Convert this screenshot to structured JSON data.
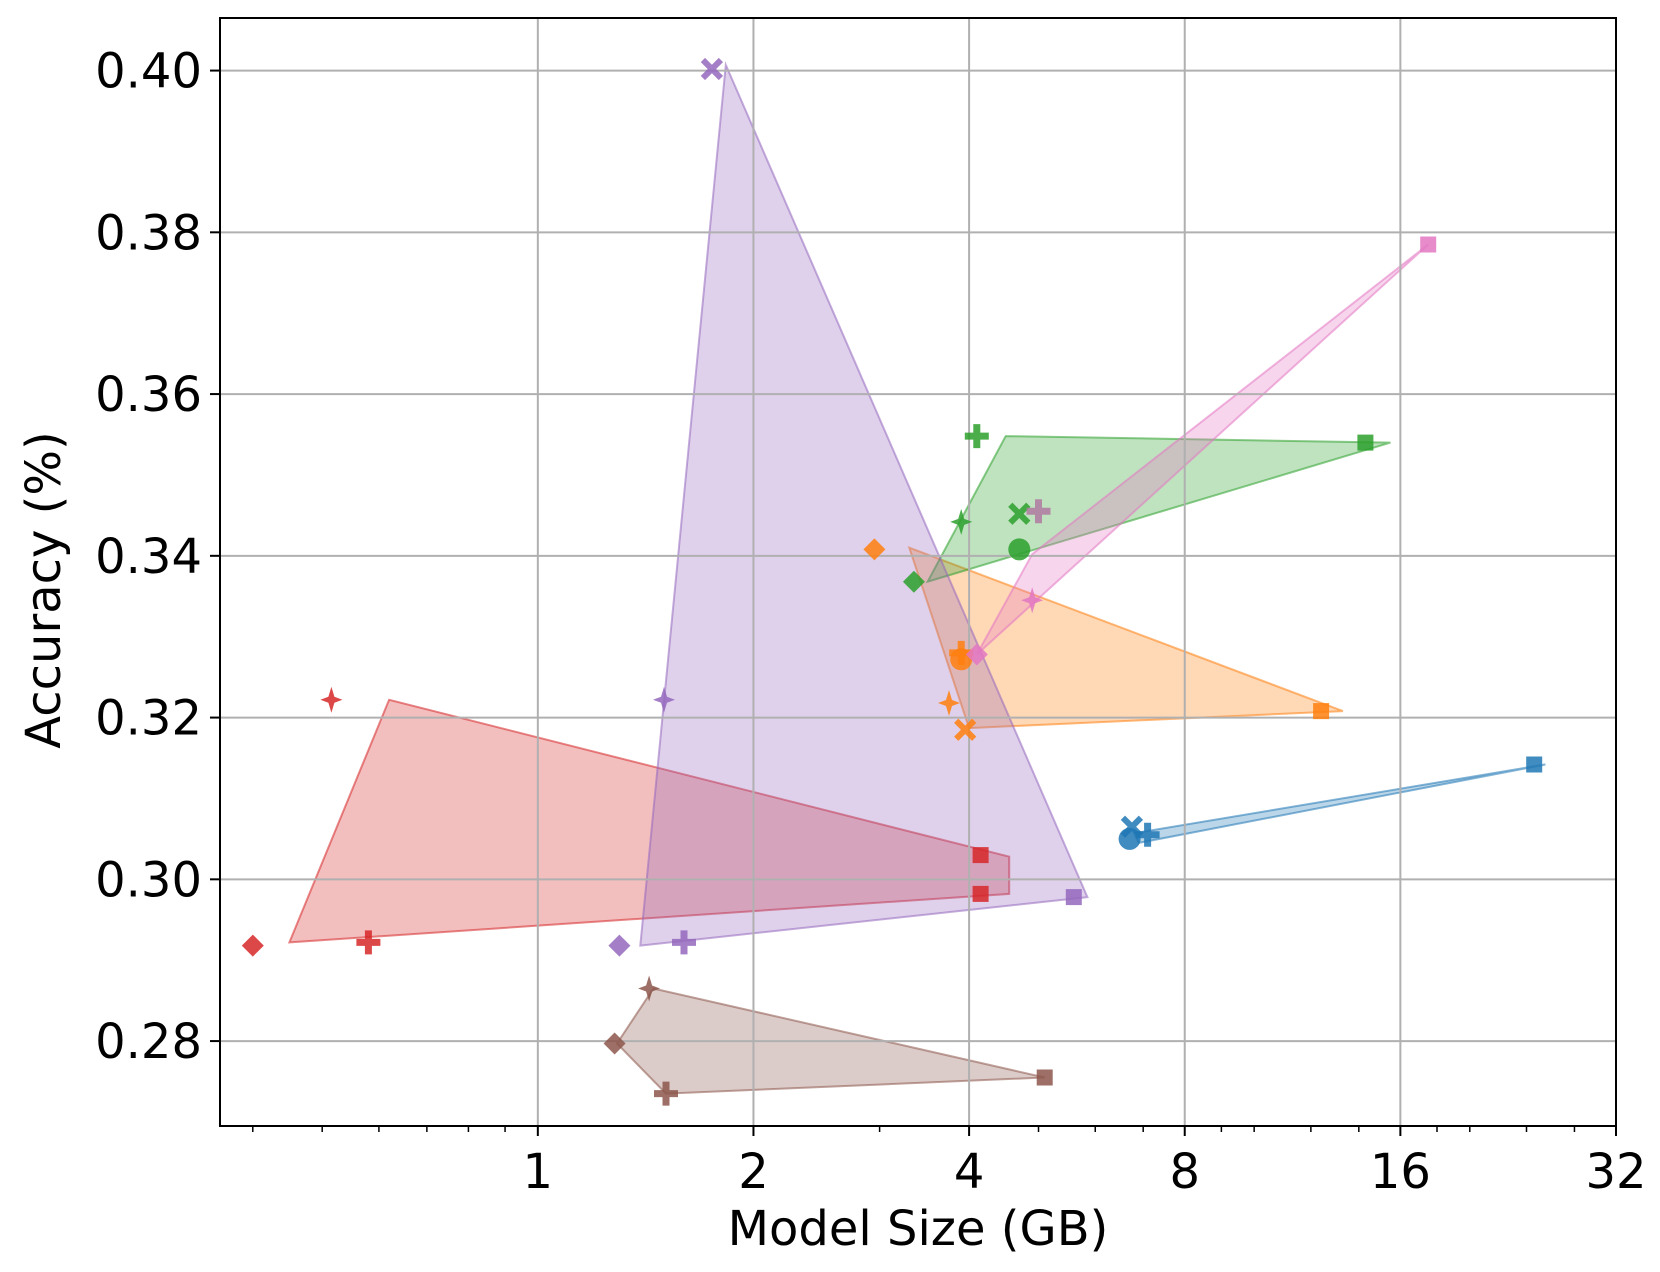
{
  "chart_data": {
    "type": "scatter",
    "title": "",
    "xlabel": "Model Size (GB)",
    "ylabel": "Accuracy (%)",
    "xscale": "log2",
    "xlim": [
      0.36,
      32
    ],
    "ylim": [
      0.2695,
      0.4065
    ],
    "xticks": [
      1,
      2,
      4,
      8,
      16,
      32
    ],
    "xtick_labels": [
      "1",
      "2",
      "4",
      "8",
      "16",
      "32"
    ],
    "yticks": [
      0.28,
      0.3,
      0.32,
      0.34,
      0.36,
      0.38,
      0.4
    ],
    "ytick_labels": [
      "0.28",
      "0.30",
      "0.32",
      "0.34",
      "0.36",
      "0.38",
      "0.40"
    ],
    "grid": true,
    "legend": null,
    "series": [
      {
        "name": "blue",
        "color": "#1f77b4",
        "points": [
          {
            "x": 6.7,
            "y": 0.305,
            "marker": "circle"
          },
          {
            "x": 6.75,
            "y": 0.3065,
            "marker": "x"
          },
          {
            "x": 7.1,
            "y": 0.3055,
            "marker": "plus"
          },
          {
            "x": 24.6,
            "y": 0.3142,
            "marker": "square"
          }
        ],
        "hull": [
          [
            6.8,
            0.3057
          ],
          [
            25.5,
            0.3142
          ],
          [
            6.9,
            0.3045
          ]
        ]
      },
      {
        "name": "orange",
        "color": "#ff7f0e",
        "points": [
          {
            "x": 2.95,
            "y": 0.3408,
            "marker": "diamond"
          },
          {
            "x": 3.75,
            "y": 0.3218,
            "marker": "star"
          },
          {
            "x": 3.9,
            "y": 0.3272,
            "marker": "circle"
          },
          {
            "x": 3.9,
            "y": 0.328,
            "marker": "plus"
          },
          {
            "x": 3.95,
            "y": 0.3185,
            "marker": "x"
          },
          {
            "x": 12.4,
            "y": 0.3208,
            "marker": "square"
          }
        ],
        "hull": [
          [
            3.3,
            0.341
          ],
          [
            13.3,
            0.3208
          ],
          [
            4.0,
            0.3187
          ]
        ]
      },
      {
        "name": "green",
        "color": "#2ca02c",
        "points": [
          {
            "x": 3.35,
            "y": 0.3368,
            "marker": "diamond"
          },
          {
            "x": 3.9,
            "y": 0.3442,
            "marker": "star"
          },
          {
            "x": 4.1,
            "y": 0.3548,
            "marker": "plus"
          },
          {
            "x": 4.7,
            "y": 0.3452,
            "marker": "x"
          },
          {
            "x": 4.7,
            "y": 0.3408,
            "marker": "circle"
          },
          {
            "x": 14.3,
            "y": 0.354,
            "marker": "square"
          }
        ],
        "hull": [
          [
            3.5,
            0.3368
          ],
          [
            4.5,
            0.3548
          ],
          [
            15.5,
            0.354
          ]
        ]
      },
      {
        "name": "red",
        "color": "#d62728",
        "points": [
          {
            "x": 0.4,
            "y": 0.2918,
            "marker": "diamond"
          },
          {
            "x": 0.515,
            "y": 0.3222,
            "marker": "star"
          },
          {
            "x": 0.58,
            "y": 0.2922,
            "marker": "plus"
          },
          {
            "x": 4.15,
            "y": 0.303,
            "marker": "square"
          },
          {
            "x": 4.15,
            "y": 0.2982,
            "marker": "square"
          }
        ],
        "hull": [
          [
            0.45,
            0.2922
          ],
          [
            0.62,
            0.3222
          ],
          [
            4.55,
            0.3028
          ],
          [
            4.55,
            0.2982
          ]
        ]
      },
      {
        "name": "purple",
        "color": "#9467bd",
        "points": [
          {
            "x": 1.75,
            "y": 0.4002,
            "marker": "x"
          },
          {
            "x": 1.5,
            "y": 0.3222,
            "marker": "star"
          },
          {
            "x": 1.3,
            "y": 0.2918,
            "marker": "diamond"
          },
          {
            "x": 1.6,
            "y": 0.2922,
            "marker": "plus"
          },
          {
            "x": 5.6,
            "y": 0.2978,
            "marker": "square"
          }
        ],
        "hull": [
          [
            1.83,
            0.4007
          ],
          [
            5.85,
            0.2978
          ],
          [
            1.39,
            0.2918
          ]
        ]
      },
      {
        "name": "brown",
        "color": "#8c564b",
        "points": [
          {
            "x": 1.43,
            "y": 0.2865,
            "marker": "star"
          },
          {
            "x": 1.28,
            "y": 0.2797,
            "marker": "diamond"
          },
          {
            "x": 1.51,
            "y": 0.2735,
            "marker": "plus"
          },
          {
            "x": 5.1,
            "y": 0.2755,
            "marker": "square"
          }
        ],
        "hull": [
          [
            1.45,
            0.2865
          ],
          [
            1.29,
            0.2797
          ],
          [
            1.51,
            0.2735
          ],
          [
            5.1,
            0.2755
          ]
        ]
      },
      {
        "name": "pink",
        "color": "#e377c2",
        "points": [
          {
            "x": 4.1,
            "y": 0.3278,
            "marker": "diamond"
          },
          {
            "x": 4.9,
            "y": 0.3345,
            "marker": "star"
          },
          {
            "x": 17.5,
            "y": 0.3785,
            "marker": "square"
          }
        ],
        "hull": [
          [
            4.1,
            0.3278
          ],
          [
            4.9,
            0.3402
          ],
          [
            17.5,
            0.3785
          ]
        ]
      },
      {
        "name": "mauve",
        "color": "#b07aa1",
        "points": [
          {
            "x": 5.0,
            "y": 0.3455,
            "marker": "plus"
          }
        ],
        "hull": []
      }
    ]
  }
}
